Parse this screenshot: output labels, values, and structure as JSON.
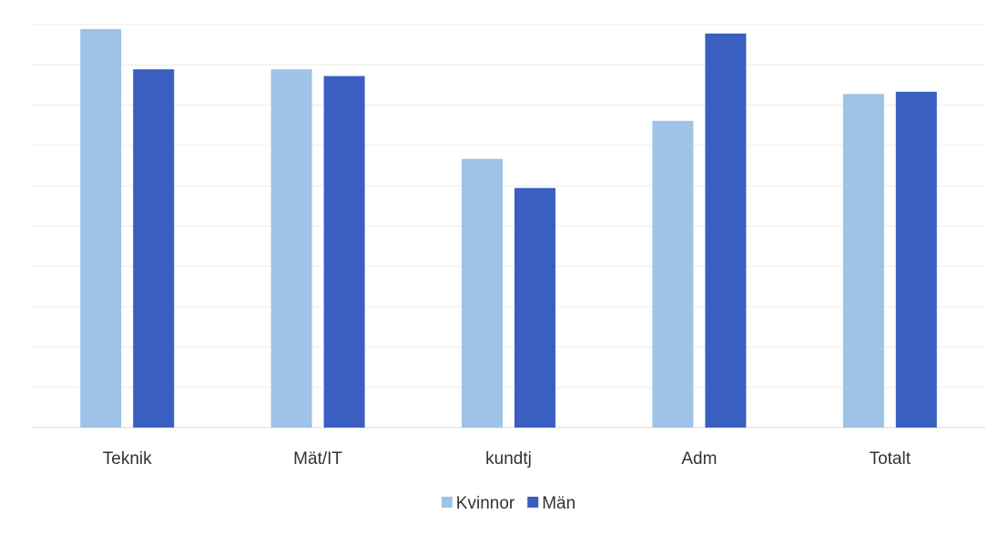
{
  "chart_data": {
    "type": "bar",
    "title": "",
    "xlabel": "",
    "ylabel": "",
    "categories": [
      "Teknik",
      "Mät/IT",
      "kundtj",
      "Adm",
      "Totalt"
    ],
    "series": [
      {
        "name": "Kvinnor",
        "color": "#9dc3e6",
        "values": [
          8.9,
          8.0,
          6.0,
          6.85,
          7.45
        ]
      },
      {
        "name": "Män",
        "color": "#3a5fc0",
        "values": [
          8.0,
          7.85,
          5.35,
          8.8,
          7.5
        ]
      }
    ],
    "ylim": [
      0,
      9
    ],
    "grid": true,
    "legend": "bottom-center"
  }
}
